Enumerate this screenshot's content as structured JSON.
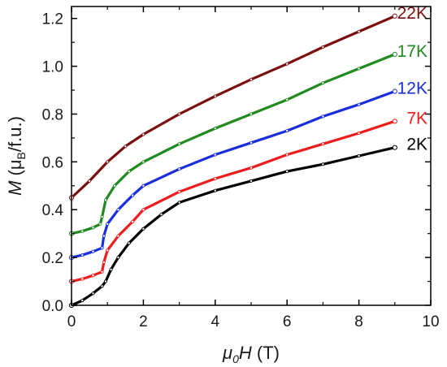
{
  "chart_data": {
    "type": "scatter",
    "xlabel": {
      "italic": "μ",
      "sub": "0",
      "italic2": "H",
      "rest": " (T)"
    },
    "ylabel": {
      "italic": "M",
      "rest": " (μ",
      "sub": "B",
      "rest2": "/f.u.)"
    },
    "xlim": [
      0,
      10
    ],
    "ylim": [
      0,
      1.25
    ],
    "xticks": [
      "0",
      "2",
      "4",
      "6",
      "8",
      "10"
    ],
    "yticks": [
      "0.0",
      "0.2",
      "0.4",
      "0.6",
      "0.8",
      "1.0",
      "1.2"
    ],
    "grid": false,
    "legend": "inline labels at right end of each curve",
    "series": [
      {
        "name": "22K",
        "color": "#7b0f0f",
        "points": [
          [
            0,
            0.45
          ],
          [
            0.5,
            0.52
          ],
          [
            1.0,
            0.6
          ],
          [
            1.5,
            0.665
          ],
          [
            2.0,
            0.715
          ],
          [
            3.0,
            0.8
          ],
          [
            4.0,
            0.875
          ],
          [
            5.0,
            0.945
          ],
          [
            6.0,
            1.01
          ],
          [
            7.0,
            1.08
          ],
          [
            8.0,
            1.145
          ],
          [
            9.0,
            1.21
          ]
        ]
      },
      {
        "name": "17K",
        "color": "#1f8a1f",
        "points": [
          [
            0,
            0.3
          ],
          [
            0.3,
            0.31
          ],
          [
            0.6,
            0.325
          ],
          [
            0.8,
            0.34
          ],
          [
            0.85,
            0.37
          ],
          [
            0.95,
            0.44
          ],
          [
            1.2,
            0.5
          ],
          [
            1.6,
            0.56
          ],
          [
            2.0,
            0.6
          ],
          [
            3.0,
            0.675
          ],
          [
            4.0,
            0.74
          ],
          [
            5.0,
            0.8
          ],
          [
            6.0,
            0.86
          ],
          [
            7.0,
            0.93
          ],
          [
            8.0,
            0.99
          ],
          [
            9.0,
            1.05
          ]
        ]
      },
      {
        "name": "12K",
        "color": "#1a2ee0",
        "points": [
          [
            0,
            0.2
          ],
          [
            0.3,
            0.21
          ],
          [
            0.6,
            0.225
          ],
          [
            0.85,
            0.24
          ],
          [
            0.9,
            0.29
          ],
          [
            1.0,
            0.34
          ],
          [
            1.3,
            0.4
          ],
          [
            1.7,
            0.46
          ],
          [
            2.0,
            0.5
          ],
          [
            3.0,
            0.57
          ],
          [
            4.0,
            0.63
          ],
          [
            5.0,
            0.68
          ],
          [
            6.0,
            0.73
          ],
          [
            7.0,
            0.79
          ],
          [
            8.0,
            0.84
          ],
          [
            9.0,
            0.895
          ]
        ]
      },
      {
        "name": "7K",
        "color": "#ee1c1c",
        "points": [
          [
            0,
            0.1
          ],
          [
            0.3,
            0.11
          ],
          [
            0.6,
            0.125
          ],
          [
            0.85,
            0.14
          ],
          [
            0.9,
            0.18
          ],
          [
            1.0,
            0.23
          ],
          [
            1.3,
            0.29
          ],
          [
            1.7,
            0.35
          ],
          [
            2.0,
            0.4
          ],
          [
            3.0,
            0.475
          ],
          [
            4.0,
            0.53
          ],
          [
            5.0,
            0.575
          ],
          [
            6.0,
            0.63
          ],
          [
            7.0,
            0.675
          ],
          [
            8.0,
            0.72
          ],
          [
            9.0,
            0.77
          ]
        ]
      },
      {
        "name": "2K",
        "color": "#000000",
        "points": [
          [
            0,
            0.0
          ],
          [
            0.3,
            0.02
          ],
          [
            0.6,
            0.05
          ],
          [
            0.85,
            0.08
          ],
          [
            0.95,
            0.1
          ],
          [
            1.1,
            0.15
          ],
          [
            1.3,
            0.2
          ],
          [
            1.6,
            0.26
          ],
          [
            2.0,
            0.32
          ],
          [
            2.5,
            0.38
          ],
          [
            3.0,
            0.43
          ],
          [
            4.0,
            0.48
          ],
          [
            5.0,
            0.52
          ],
          [
            6.0,
            0.56
          ],
          [
            7.0,
            0.59
          ],
          [
            8.0,
            0.625
          ],
          [
            9.0,
            0.66
          ]
        ]
      }
    ]
  }
}
